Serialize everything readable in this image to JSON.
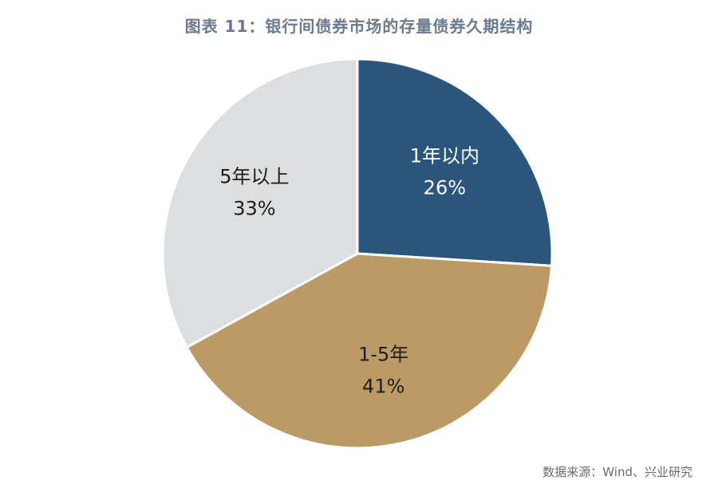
{
  "chart_data": {
    "type": "pie",
    "title": "图表 11：银行间债券市场的存量债券久期结构",
    "slices": [
      {
        "label": "1年以内",
        "value": 26,
        "value_label": "26%",
        "color": "#2a557c",
        "text_color": "#ffffff"
      },
      {
        "label": "1-5年",
        "value": 41,
        "value_label": "41%",
        "color": "#bb9a66",
        "text_color": "#1e1e1e"
      },
      {
        "label": "5年以上",
        "value": 33,
        "value_label": "33%",
        "color": "#dcdedf",
        "text_color": "#1e1e1e"
      }
    ],
    "start_angle_deg": 0,
    "direction": "clockwise",
    "legend": "none",
    "source": "数据来源：Wind、兴业研究"
  }
}
